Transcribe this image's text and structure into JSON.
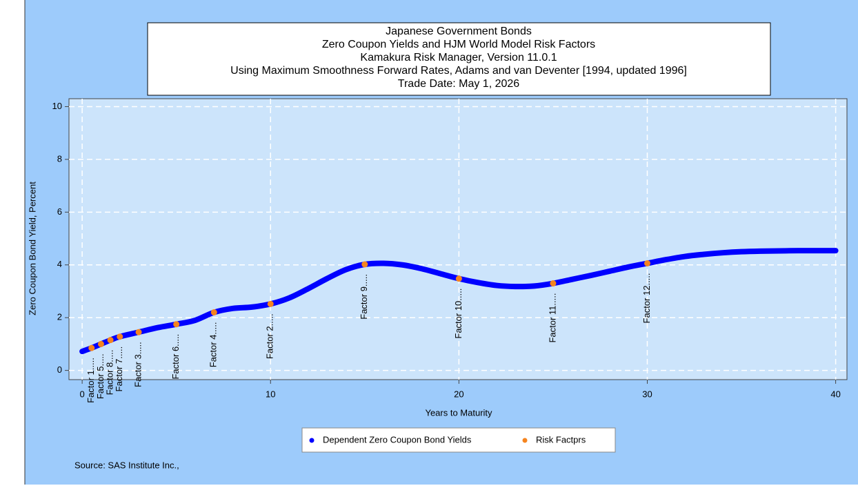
{
  "chart_data": {
    "type": "line",
    "title": [
      "Japanese Government Bonds",
      "Zero Coupon Yields and HJM World Model Risk Factors",
      "Kamakura Risk Manager, Version 11.0.1",
      "Using Maximum Smoothness Forward Rates, Adams and van Deventer [1994, updated 1996]",
      "Trade Date: May 1, 2026"
    ],
    "x_label": "Years to Maturity",
    "y_label": "Zero Coupon Bond Yield, Percent",
    "xlim": [
      -0.7,
      40.6
    ],
    "ylim": [
      -0.35,
      10.3
    ],
    "xticks": [
      0,
      10,
      20,
      30,
      40
    ],
    "yticks": [
      0,
      2,
      4,
      6,
      8,
      10
    ],
    "grid": true,
    "series": [
      {
        "name": "Dependent Zero Coupon Bond Yields",
        "color": "#0000ff",
        "x": [
          0,
          0.5,
          1,
          1.5,
          2,
          3,
          4,
          5,
          6,
          7,
          8,
          9,
          10,
          11,
          12,
          13,
          14,
          15,
          16,
          17,
          18,
          19,
          20,
          21,
          22,
          23,
          24,
          25,
          26,
          27,
          28,
          29,
          30,
          31,
          32,
          33,
          34,
          35,
          36,
          37,
          38,
          39,
          40
        ],
        "values": [
          0.72,
          0.85,
          1.0,
          1.15,
          1.28,
          1.45,
          1.62,
          1.75,
          1.9,
          2.2,
          2.35,
          2.4,
          2.52,
          2.75,
          3.1,
          3.48,
          3.82,
          4.02,
          4.06,
          4.0,
          3.86,
          3.67,
          3.48,
          3.33,
          3.22,
          3.18,
          3.2,
          3.3,
          3.45,
          3.6,
          3.76,
          3.92,
          4.06,
          4.2,
          4.32,
          4.4,
          4.46,
          4.5,
          4.52,
          4.53,
          4.54,
          4.54,
          4.54
        ]
      },
      {
        "name": "Risk Factprs",
        "color": "#f5841f",
        "x": [
          0.5,
          1,
          1.5,
          2,
          3,
          5,
          7,
          10,
          15,
          20,
          25,
          30
        ],
        "values": [
          0.85,
          1.0,
          1.15,
          1.28,
          1.45,
          1.75,
          2.2,
          2.52,
          4.02,
          3.48,
          3.3,
          4.06
        ],
        "point_labels": [
          "Factor 1.....",
          "Factor 5.....",
          "Factor 8.....",
          "Factor 7.....",
          "Factor 3.....",
          "Factor 6.....",
          "Factor 4.....",
          "Factor 2.....",
          "Factor 9.....",
          "Factor 10.....",
          "Factor 11.....",
          "Factor 12....."
        ]
      }
    ],
    "source": "Source: SAS Institute Inc.,"
  }
}
